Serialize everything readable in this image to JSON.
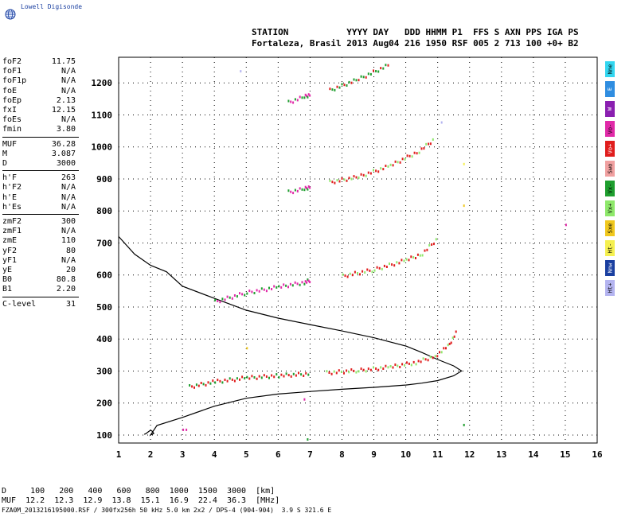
{
  "brand": "Lowell Digisonde",
  "header": {
    "line1": "STATION           YYYY DAY   DDD HHMM P1  FFS S AXN PPS IGA PS",
    "line2": "Fortaleza, Brasil 2013 Aug04 216 1950 RSF 005 2 713 100 +0+ B2"
  },
  "parameters": [
    {
      "label": "foF2",
      "value": "11.75"
    },
    {
      "label": "foF1",
      "value": "N/A"
    },
    {
      "label": "foF1p",
      "value": "N/A"
    },
    {
      "label": "foE",
      "value": "N/A"
    },
    {
      "label": "foEp",
      "value": "2.13"
    },
    {
      "label": "fxI",
      "value": "12.15"
    },
    {
      "label": "foEs",
      "value": "N/A"
    },
    {
      "label": "fmin",
      "value": "3.80"
    },
    {
      "label": "MUF",
      "value": "36.28"
    },
    {
      "label": "M",
      "value": "3.087"
    },
    {
      "label": "D",
      "value": "3000"
    },
    {
      "label": "h'F",
      "value": "263"
    },
    {
      "label": "h'F2",
      "value": "N/A"
    },
    {
      "label": "h'E",
      "value": "N/A"
    },
    {
      "label": "h'Es",
      "value": "N/A"
    },
    {
      "label": "zmF2",
      "value": "300"
    },
    {
      "label": "zmF1",
      "value": "N/A"
    },
    {
      "label": "zmE",
      "value": "110"
    },
    {
      "label": "yF2",
      "value": "80"
    },
    {
      "label": "yF1",
      "value": "N/A"
    },
    {
      "label": "yE",
      "value": "20"
    },
    {
      "label": "B0",
      "value": "80.8"
    },
    {
      "label": "B1",
      "value": "2.20"
    },
    {
      "label": "C-level",
      "value": "31"
    }
  ],
  "legend": [
    {
      "label": "Nne",
      "color": "#33d6f0"
    },
    {
      "label": "E",
      "color": "#2f8de0"
    },
    {
      "label": "W",
      "color": "#8a1fb0"
    },
    {
      "label": "Vo-",
      "color": "#e02aa8"
    },
    {
      "label": "Vo+",
      "color": "#e01d1d"
    },
    {
      "label": "Swo",
      "color": "#f0a0a0"
    },
    {
      "label": "Vx-",
      "color": "#1e9e2e"
    },
    {
      "label": "Vx+",
      "color": "#8ee86a"
    },
    {
      "label": "Sxe",
      "color": "#f0c81e"
    },
    {
      "label": "Ht-",
      "color": "#f5f050"
    },
    {
      "label": "Nnw",
      "color": "#1a3fa0"
    },
    {
      "label": "Ht+",
      "color": "#b4b4f0"
    }
  ],
  "footer": {
    "d_row": "D     100   200   400   600   800  1000  1500  3000  [km]",
    "muf_row": "MUF  12.2  12.3  12.9  13.8  15.1  16.9  22.4  36.3  [MHz]",
    "file_row": "FZA0M_2013216195000.RSF / 300fx256h 50 kHz 5.0 km 2x2 / DPS-4 (904-904)  3.9 S 321.6 E"
  },
  "chart_data": {
    "type": "scatter",
    "xlim": [
      1,
      16
    ],
    "ylim": [
      75,
      1280
    ],
    "x_ticks": [
      1,
      2,
      3,
      4,
      5,
      6,
      7,
      8,
      9,
      10,
      11,
      12,
      13,
      14,
      15,
      16
    ],
    "y_ticks": [
      100,
      200,
      300,
      400,
      500,
      600,
      700,
      800,
      900,
      1000,
      1100,
      1200
    ],
    "grid": "dotted",
    "profile": {
      "freq": [
        1.8,
        1.85,
        1.9,
        2.0,
        2.05,
        2.1,
        2.0,
        2.2,
        3.0,
        4.0,
        5.0,
        6.0,
        7.0,
        8.0,
        9.0,
        10.0,
        10.5,
        11.0,
        11.5,
        11.75,
        11.5,
        11.0,
        10.5,
        10.0,
        9.0,
        8.0,
        7.0,
        6.0,
        5.0,
        4.0,
        3.0,
        2.5,
        2.0,
        1.5,
        1.0
      ],
      "height": [
        102,
        104,
        108,
        115,
        112,
        105,
        100,
        130,
        155,
        190,
        215,
        228,
        236,
        243,
        249,
        256,
        262,
        270,
        285,
        300,
        316,
        336,
        358,
        378,
        404,
        425,
        445,
        465,
        490,
        527,
        565,
        610,
        630,
        665,
        720
      ]
    },
    "traces": [
      {
        "name": "F1 trace",
        "color": "#e01d1d",
        "alt": "#1e9e2e",
        "x": [
          3.2,
          4.0,
          5.0,
          6.0,
          7.0
        ],
        "y": [
          254,
          270,
          282,
          289,
          295
        ]
      },
      {
        "name": "F2 trace",
        "color": "#e01d1d",
        "alt": "#8ee86a",
        "x": [
          7.5,
          8.5,
          9.5,
          10.3,
          10.9,
          11.3,
          11.6
        ],
        "y": [
          298,
          305,
          316,
          330,
          350,
          380,
          430
        ]
      },
      {
        "name": "2F lower",
        "color": "#e02aa8",
        "alt": "#1e9e2e",
        "x": [
          4.0,
          5.0,
          6.0,
          6.8,
          7.0
        ],
        "y": [
          520,
          548,
          566,
          580,
          588
        ]
      },
      {
        "name": "2F upper",
        "color": "#e01d1d",
        "alt": "#8ee86a",
        "x": [
          8.0,
          9.0,
          10.0,
          10.5,
          11.0
        ],
        "y": [
          600,
          620,
          650,
          670,
          720
        ]
      },
      {
        "name": "3F lower",
        "color": "#e02aa8",
        "alt": "#1e9e2e",
        "x": [
          6.3,
          6.8,
          7.0
        ],
        "y": [
          862,
          872,
          880
        ]
      },
      {
        "name": "3F upper",
        "color": "#e01d1d",
        "alt": "#8ee86a",
        "x": [
          7.6,
          8.5,
          9.5,
          10.4,
          10.9
        ],
        "y": [
          893,
          910,
          945,
          990,
          1030
        ]
      },
      {
        "name": "4F lower",
        "color": "#e02aa8",
        "alt": "#1e9e2e",
        "x": [
          6.3,
          6.8,
          7.0
        ],
        "y": [
          1142,
          1160,
          1168
        ]
      },
      {
        "name": "4F upper",
        "color": "#1e9e2e",
        "alt": "#e01d1d",
        "x": [
          7.6,
          8.5,
          9.5
        ],
        "y": [
          1180,
          1215,
          1262
        ]
      }
    ],
    "scattered_points": [
      {
        "x": 11.8,
        "y": 950,
        "color": "#f5f050"
      },
      {
        "x": 11.8,
        "y": 820,
        "color": "#f0c81e"
      },
      {
        "x": 11.8,
        "y": 135,
        "color": "#1e9e2e"
      },
      {
        "x": 15.0,
        "y": 760,
        "color": "#e02aa8"
      },
      {
        "x": 4.8,
        "y": 1240,
        "color": "#b4b4f0"
      },
      {
        "x": 11.1,
        "y": 1080,
        "color": "#b4b4f0"
      },
      {
        "x": 3.0,
        "y": 120,
        "color": "#e02aa8"
      },
      {
        "x": 3.1,
        "y": 120,
        "color": "#e02aa8"
      },
      {
        "x": 6.9,
        "y": 90,
        "color": "#1e9e2e"
      },
      {
        "x": 6.8,
        "y": 215,
        "color": "#e02aa8"
      },
      {
        "x": 5.0,
        "y": 375,
        "color": "#f0c81e"
      }
    ]
  }
}
